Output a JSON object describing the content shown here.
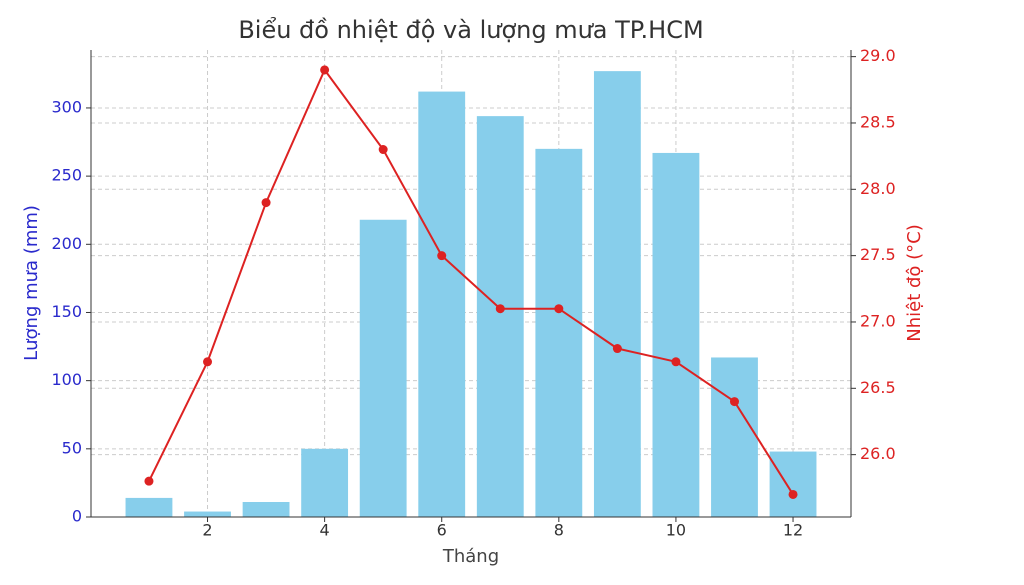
{
  "chart_data": {
    "type": "bar",
    "title": "Biểu đồ nhiệt độ và lượng mưa TP.HCM",
    "x_label": "Tháng",
    "y_label": "Lượng mưa (mm)",
    "y2_label": "Nhiệt độ (°C)",
    "x": [
      1,
      2,
      3,
      4,
      5,
      6,
      7,
      8,
      9,
      10,
      11,
      12
    ],
    "series": [
      {
        "name": "Lượng mưa (mm)",
        "type": "bar",
        "color": "#87ceeb",
        "values": [
          14,
          4,
          11,
          50,
          218,
          312,
          294,
          270,
          327,
          267,
          117,
          48
        ]
      },
      {
        "name": "Nhiệt độ (°C)",
        "type": "line",
        "axis": "y2",
        "color": "#dd2222",
        "values": [
          25.8,
          26.7,
          27.9,
          28.9,
          28.3,
          27.5,
          27.1,
          27.1,
          26.8,
          26.7,
          26.4,
          25.7
        ]
      }
    ],
    "xlim": [
      0.01,
      12.99
    ],
    "xticks": [
      2,
      4,
      6,
      8,
      10,
      12
    ],
    "ylim": [
      0,
      342.5
    ],
    "yticks": [
      0,
      50,
      100,
      150,
      200,
      250,
      300
    ],
    "y2lim": [
      25.53,
      29.05
    ],
    "y2ticks": [
      {
        "value": 26,
        "label": "26.0"
      },
      {
        "value": 26.5,
        "label": "26.5"
      },
      {
        "value": 27,
        "label": "27.0"
      },
      {
        "value": 27.5,
        "label": "27.5"
      },
      {
        "value": 28,
        "label": "28.0"
      },
      {
        "value": 28.5,
        "label": "28.5"
      },
      {
        "value": 29,
        "label": "29.0"
      }
    ],
    "grid": true,
    "y_color": "#2a2acc",
    "y2_color": "#dd2222"
  }
}
